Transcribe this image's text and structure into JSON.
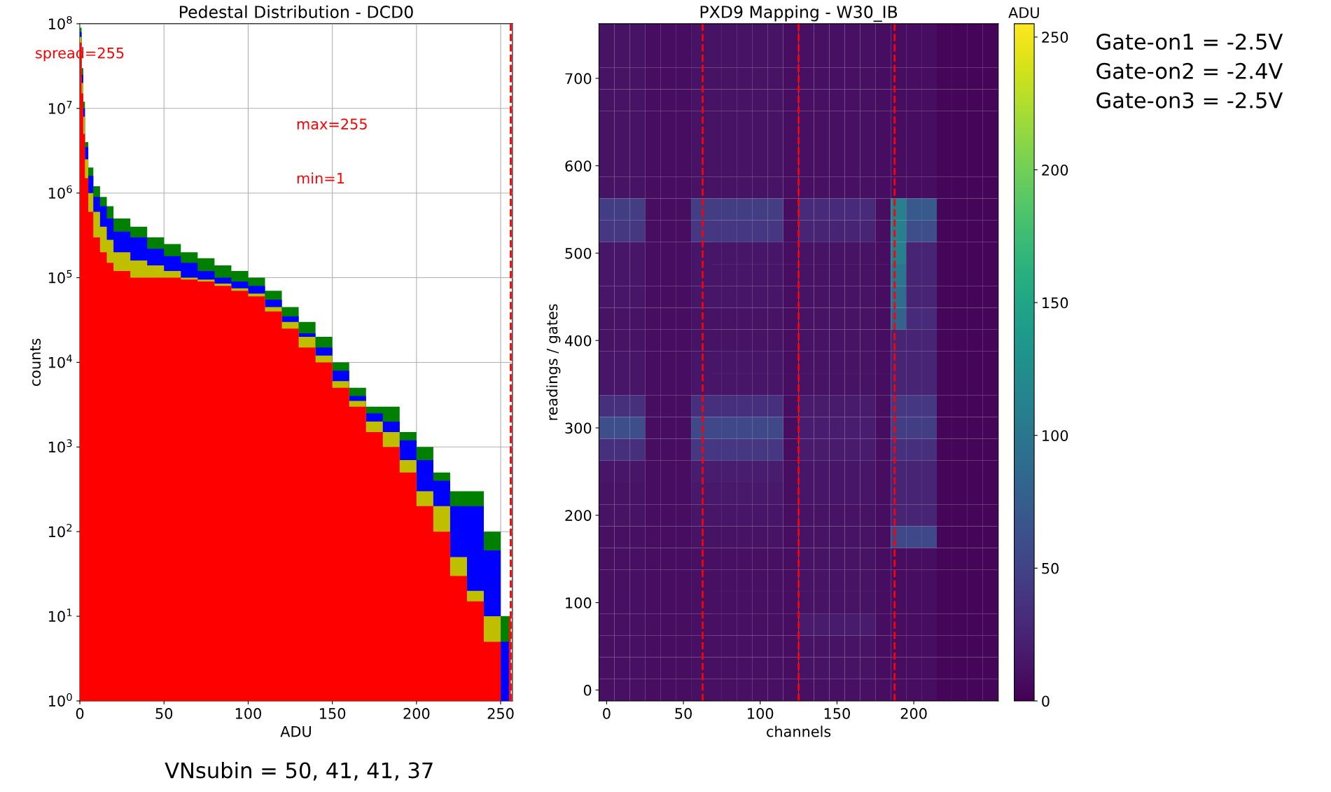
{
  "chart_data": [
    {
      "type": "histogram",
      "title": "Pedestal Distribution - DCD0",
      "xlabel": "ADU",
      "ylabel": "counts",
      "log": "y",
      "grid": true,
      "bins": [
        0,
        1,
        2,
        3,
        5,
        8,
        12,
        16,
        20,
        30,
        40,
        50,
        60,
        70,
        80,
        90,
        100,
        110,
        120,
        130,
        140,
        150,
        160,
        170,
        180,
        190,
        200,
        210,
        220,
        230,
        240,
        250,
        255,
        256
      ],
      "series": [
        {
          "color": "#ff0000",
          "values": [
            60000000,
            15000000,
            5000000,
            1500000,
            600000,
            300000,
            200000,
            150000,
            120000,
            100000,
            100000,
            100000,
            95000,
            90000,
            80000,
            70000,
            60000,
            40000,
            25000,
            15000,
            10000,
            5000,
            3000,
            1500,
            1000,
            500,
            200,
            100,
            30,
            15,
            5,
            1,
            10
          ]
        },
        {
          "color": "#bfbf00",
          "values": [
            70000000,
            20000000,
            8000000,
            2500000,
            1000000,
            600000,
            400000,
            280000,
            200000,
            160000,
            140000,
            120000,
            100000,
            95000,
            85000,
            75000,
            65000,
            45000,
            30000,
            20000,
            12000,
            6000,
            3500,
            2000,
            1500,
            700,
            300,
            200,
            50,
            20,
            10,
            1,
            1
          ]
        },
        {
          "color": "#0000ff",
          "values": [
            80000000,
            25000000,
            10000000,
            3500000,
            1600000,
            900000,
            700000,
            500000,
            350000,
            300000,
            220000,
            180000,
            150000,
            120000,
            100000,
            90000,
            80000,
            55000,
            35000,
            22000,
            15000,
            8000,
            4000,
            2500,
            2000,
            1200,
            700,
            400,
            200,
            200,
            60,
            5,
            1
          ]
        },
        {
          "color": "#008000",
          "values": [
            90000000,
            30000000,
            12000000,
            4000000,
            2000000,
            1200000,
            900000,
            700000,
            500000,
            400000,
            300000,
            250000,
            200000,
            170000,
            140000,
            120000,
            100000,
            70000,
            45000,
            30000,
            20000,
            10000,
            5000,
            3000,
            3000,
            1500,
            1000,
            500,
            300,
            300,
            100,
            10,
            1
          ]
        }
      ],
      "xlim": [
        0,
        257
      ],
      "xticks": [
        0,
        50,
        100,
        150,
        200,
        250
      ],
      "ylim": [
        1,
        100000000
      ],
      "yticks": [
        {
          "value": 1,
          "label": "10$^{0}$"
        },
        {
          "value": 10,
          "label": "10$^{1}$"
        },
        {
          "value": 100,
          "label": "10$^{2}$"
        },
        {
          "value": 1000,
          "label": "10$^{3}$"
        },
        {
          "value": 10000,
          "label": "10$^{4}$"
        },
        {
          "value": 100000,
          "label": "10$^{5}$"
        },
        {
          "value": 1000000,
          "label": "10$^{6}$"
        },
        {
          "value": 10000000,
          "label": "10$^{7}$"
        },
        {
          "value": 100000000,
          "label": "10$^{8}$"
        }
      ],
      "ref_lines": [
        {
          "axis": "x",
          "value": 256,
          "color": "#ff0000",
          "line_style": "dashed"
        }
      ],
      "annotations": [
        "spread=255",
        "max=255",
        "min=1",
        "VNsubin = 50, 41, 41, 37"
      ]
    },
    {
      "type": "heatmap",
      "title": "PXD9 Mapping - W30_IB",
      "xlabel": "channels",
      "ylabel": "readings / gates",
      "clabel": "ADU",
      "categories": [
        "0",
        null,
        null,
        null,
        null,
        "50",
        null,
        null,
        null,
        null,
        "100",
        null,
        null,
        null,
        null,
        "150",
        null,
        null,
        null,
        null,
        "200",
        null,
        null,
        null,
        null,
        null
      ],
      "y_categories": [
        null,
        null,
        "700",
        null,
        null,
        null,
        "600",
        null,
        null,
        null,
        "500",
        null,
        null,
        null,
        "400",
        null,
        null,
        null,
        "300",
        null,
        null,
        null,
        "200",
        null,
        null,
        null,
        "100",
        null,
        null,
        null,
        "0"
      ],
      "cells": [
        [
          12,
          12,
          12,
          8,
          8,
          8,
          12,
          12,
          12,
          12,
          12,
          12,
          8,
          10,
          10,
          10,
          10,
          10,
          8,
          8,
          8,
          8,
          3,
          3,
          3,
          3
        ],
        [
          12,
          12,
          12,
          8,
          8,
          8,
          12,
          12,
          12,
          12,
          12,
          12,
          8,
          10,
          10,
          10,
          10,
          10,
          8,
          8,
          8,
          8,
          3,
          3,
          3,
          3
        ],
        [
          12,
          12,
          12,
          8,
          8,
          8,
          12,
          12,
          12,
          12,
          12,
          12,
          8,
          10,
          10,
          10,
          10,
          10,
          8,
          8,
          8,
          8,
          3,
          3,
          3,
          3
        ],
        [
          12,
          12,
          12,
          8,
          8,
          8,
          12,
          12,
          12,
          12,
          12,
          12,
          8,
          10,
          10,
          10,
          10,
          10,
          8,
          8,
          8,
          8,
          3,
          3,
          3,
          3
        ],
        [
          12,
          12,
          12,
          8,
          8,
          8,
          12,
          12,
          12,
          12,
          12,
          12,
          8,
          10,
          10,
          10,
          10,
          10,
          8,
          8,
          8,
          8,
          3,
          3,
          3,
          3
        ],
        [
          12,
          12,
          12,
          8,
          8,
          8,
          12,
          12,
          12,
          12,
          12,
          12,
          8,
          10,
          10,
          10,
          10,
          10,
          8,
          8,
          8,
          8,
          3,
          3,
          3,
          3
        ],
        [
          12,
          12,
          12,
          8,
          8,
          8,
          12,
          12,
          12,
          12,
          12,
          12,
          8,
          10,
          10,
          10,
          10,
          10,
          8,
          8,
          8,
          8,
          3,
          3,
          3,
          3
        ],
        [
          12,
          12,
          12,
          8,
          8,
          8,
          12,
          12,
          12,
          12,
          12,
          12,
          8,
          10,
          10,
          10,
          10,
          10,
          8,
          8,
          8,
          8,
          3,
          3,
          3,
          3
        ],
        [
          45,
          45,
          45,
          8,
          8,
          8,
          45,
          45,
          45,
          45,
          45,
          45,
          8,
          30,
          30,
          30,
          30,
          30,
          8,
          110,
          70,
          70,
          3,
          3,
          3,
          3
        ],
        [
          40,
          40,
          40,
          8,
          8,
          8,
          40,
          40,
          40,
          40,
          40,
          40,
          8,
          25,
          25,
          25,
          25,
          25,
          8,
          110,
          60,
          60,
          3,
          3,
          3,
          3
        ],
        [
          14,
          14,
          14,
          8,
          8,
          8,
          14,
          14,
          14,
          14,
          14,
          14,
          8,
          12,
          12,
          12,
          12,
          12,
          8,
          110,
          25,
          25,
          3,
          3,
          3,
          3
        ],
        [
          14,
          14,
          14,
          8,
          8,
          8,
          14,
          14,
          14,
          14,
          14,
          14,
          8,
          12,
          12,
          12,
          12,
          12,
          8,
          100,
          25,
          25,
          3,
          3,
          3,
          3
        ],
        [
          14,
          14,
          14,
          8,
          8,
          8,
          14,
          14,
          14,
          14,
          14,
          14,
          8,
          12,
          12,
          12,
          12,
          12,
          8,
          90,
          25,
          25,
          3,
          3,
          3,
          3
        ],
        [
          12,
          12,
          12,
          8,
          8,
          8,
          12,
          12,
          12,
          12,
          12,
          12,
          8,
          12,
          12,
          12,
          12,
          12,
          8,
          80,
          30,
          30,
          3,
          3,
          3,
          3
        ],
        [
          12,
          12,
          12,
          8,
          8,
          8,
          12,
          12,
          12,
          12,
          12,
          12,
          8,
          12,
          12,
          12,
          12,
          12,
          8,
          25,
          25,
          25,
          3,
          3,
          3,
          3
        ],
        [
          14,
          14,
          14,
          8,
          8,
          8,
          14,
          14,
          14,
          14,
          14,
          14,
          8,
          12,
          12,
          12,
          12,
          12,
          8,
          25,
          25,
          25,
          3,
          3,
          3,
          3
        ],
        [
          14,
          14,
          14,
          8,
          8,
          8,
          14,
          14,
          14,
          14,
          14,
          14,
          8,
          12,
          12,
          12,
          12,
          12,
          8,
          25,
          25,
          25,
          3,
          3,
          3,
          3
        ],
        [
          35,
          35,
          35,
          8,
          8,
          8,
          35,
          35,
          35,
          35,
          35,
          35,
          8,
          18,
          18,
          18,
          18,
          18,
          8,
          40,
          40,
          40,
          3,
          3,
          3,
          3
        ],
        [
          60,
          60,
          60,
          8,
          8,
          8,
          55,
          55,
          55,
          55,
          55,
          55,
          8,
          20,
          20,
          20,
          20,
          20,
          8,
          45,
          45,
          45,
          3,
          3,
          3,
          3
        ],
        [
          35,
          35,
          35,
          8,
          8,
          8,
          40,
          40,
          40,
          40,
          40,
          40,
          8,
          18,
          18,
          18,
          18,
          18,
          8,
          35,
          35,
          35,
          3,
          3,
          3,
          3
        ],
        [
          14,
          14,
          14,
          8,
          8,
          8,
          20,
          20,
          20,
          20,
          20,
          20,
          8,
          14,
          14,
          14,
          14,
          14,
          8,
          25,
          25,
          25,
          3,
          3,
          3,
          3
        ],
        [
          12,
          12,
          12,
          8,
          8,
          8,
          16,
          16,
          16,
          16,
          16,
          16,
          8,
          14,
          14,
          14,
          14,
          14,
          8,
          25,
          25,
          25,
          3,
          3,
          3,
          3
        ],
        [
          12,
          12,
          12,
          8,
          8,
          8,
          14,
          14,
          14,
          14,
          14,
          14,
          8,
          12,
          12,
          12,
          12,
          12,
          8,
          25,
          25,
          25,
          3,
          3,
          3,
          3
        ],
        [
          10,
          10,
          10,
          8,
          8,
          8,
          12,
          12,
          12,
          12,
          12,
          12,
          8,
          12,
          12,
          12,
          12,
          12,
          8,
          55,
          55,
          55,
          3,
          3,
          3,
          3
        ],
        [
          10,
          10,
          10,
          8,
          8,
          8,
          10,
          10,
          10,
          10,
          10,
          10,
          8,
          12,
          12,
          12,
          12,
          12,
          8,
          8,
          8,
          8,
          3,
          3,
          3,
          3
        ],
        [
          10,
          10,
          10,
          8,
          8,
          8,
          10,
          10,
          10,
          10,
          10,
          10,
          8,
          12,
          12,
          12,
          12,
          12,
          8,
          8,
          8,
          8,
          3,
          3,
          3,
          3
        ],
        [
          10,
          10,
          10,
          8,
          8,
          8,
          10,
          10,
          10,
          10,
          10,
          10,
          8,
          12,
          12,
          12,
          12,
          12,
          8,
          8,
          8,
          8,
          3,
          3,
          3,
          3
        ],
        [
          10,
          10,
          10,
          8,
          8,
          8,
          10,
          10,
          10,
          10,
          10,
          10,
          8,
          18,
          18,
          18,
          18,
          18,
          8,
          8,
          8,
          8,
          3,
          3,
          3,
          3
        ],
        [
          10,
          10,
          10,
          8,
          8,
          8,
          10,
          10,
          10,
          10,
          10,
          10,
          8,
          12,
          12,
          12,
          12,
          12,
          8,
          8,
          8,
          8,
          3,
          3,
          3,
          3
        ],
        [
          10,
          10,
          10,
          8,
          8,
          8,
          10,
          10,
          10,
          10,
          10,
          10,
          8,
          12,
          12,
          12,
          12,
          12,
          8,
          8,
          8,
          8,
          3,
          3,
          3,
          3
        ],
        [
          10,
          10,
          10,
          8,
          8,
          8,
          10,
          10,
          10,
          10,
          10,
          10,
          8,
          10,
          10,
          10,
          10,
          10,
          8,
          8,
          8,
          8,
          3,
          3,
          3,
          3
        ]
      ],
      "clim": [
        0,
        255
      ],
      "cticks": [
        0,
        50,
        100,
        150,
        200,
        250
      ],
      "annotations": [
        "Gate-on1 = -2.5V",
        "Gate-on2 = -2.4V",
        "Gate-on3 = -2.5V"
      ]
    }
  ]
}
